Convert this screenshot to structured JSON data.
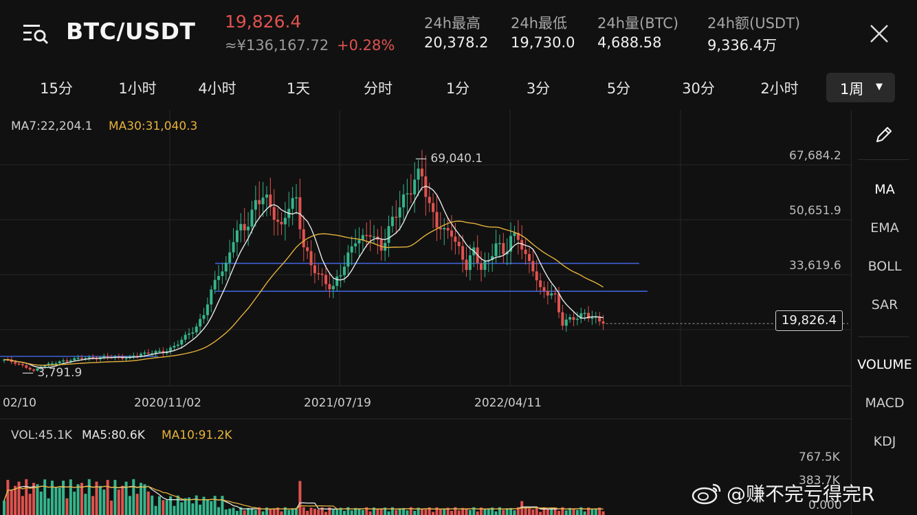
{
  "header": {
    "pair": "BTC/USDT",
    "last_price": "19,826.4",
    "cny_price": "≈¥136,167.72",
    "change": "+0.28%",
    "stats": [
      {
        "label": "24h最高",
        "value": "20,378.2"
      },
      {
        "label": "24h最低",
        "value": "19,730.0"
      },
      {
        "label": "24h量(BTC)",
        "value": "4,688.58"
      },
      {
        "label": "24h额(USDT)",
        "value": "9,336.4万"
      }
    ]
  },
  "tabs": [
    "15分",
    "1小时",
    "4小时",
    "1天",
    "分时",
    "1分",
    "3分",
    "5分",
    "30分",
    "2小时"
  ],
  "active_tab": {
    "label": "1周",
    "caret": "▼"
  },
  "side_panel": {
    "main_indicators": [
      "MA",
      "EMA",
      "BOLL",
      "SAR"
    ],
    "sub_indicators": [
      "VOLUME",
      "MACD",
      "KDJ"
    ]
  },
  "colors": {
    "up": "#35b58c",
    "down": "#e0534f",
    "ma7": "#e8e8e8",
    "ma30": "#e6b33c",
    "line": "#3f63d8"
  },
  "chart_data": {
    "type": "candlestick",
    "legend": {
      "ma7": "MA7:22,204.1",
      "ma30": "MA30:31,040.3"
    },
    "y_ticks": [
      "67,684.2",
      "50,651.9",
      "33,619.6"
    ],
    "x_ticks": [
      "02/10",
      "2020/11/02",
      "2021/07/19",
      "2022/04/11"
    ],
    "high_marker": "69,040.1",
    "low_marker": "3,791.9",
    "current_price": "19,826.4",
    "ylim": [
      3700,
      75000
    ],
    "horizontal_lines": [
      29850,
      38500
    ],
    "weekly_close_anchors": [
      [
        0,
        8500
      ],
      [
        3,
        7800
      ],
      [
        6,
        6200
      ],
      [
        8,
        5000
      ],
      [
        10,
        6800
      ],
      [
        14,
        7600
      ],
      [
        18,
        8800
      ],
      [
        22,
        9100
      ],
      [
        26,
        9300
      ],
      [
        30,
        9500
      ],
      [
        34,
        9200
      ],
      [
        37,
        10500
      ],
      [
        40,
        11000
      ],
      [
        43,
        10800
      ],
      [
        46,
        13000
      ],
      [
        49,
        15500
      ],
      [
        52,
        19000
      ],
      [
        54,
        23000
      ],
      [
        56,
        29000
      ],
      [
        58,
        36000
      ],
      [
        60,
        38000
      ],
      [
        62,
        46000
      ],
      [
        65,
        50000
      ],
      [
        68,
        57000
      ],
      [
        70,
        58500
      ],
      [
        73,
        55000
      ],
      [
        75,
        49000
      ],
      [
        77,
        56000
      ],
      [
        79,
        58000
      ],
      [
        81,
        45000
      ],
      [
        83,
        37000
      ],
      [
        85,
        35000
      ],
      [
        87,
        33000
      ],
      [
        89,
        31000
      ],
      [
        91,
        35000
      ],
      [
        93,
        41000
      ],
      [
        95,
        47000
      ],
      [
        97,
        45000
      ],
      [
        99,
        48000
      ],
      [
        102,
        44000
      ],
      [
        104,
        48000
      ],
      [
        107,
        57000
      ],
      [
        109,
        61000
      ],
      [
        111,
        63000
      ],
      [
        113,
        66000
      ],
      [
        115,
        57000
      ],
      [
        117,
        51000
      ],
      [
        119,
        47000
      ],
      [
        121,
        49000
      ],
      [
        123,
        43000
      ],
      [
        125,
        37000
      ],
      [
        127,
        42000
      ],
      [
        129,
        38000
      ],
      [
        131,
        39000
      ],
      [
        133,
        44000
      ],
      [
        135,
        42000
      ],
      [
        137,
        47000
      ],
      [
        139,
        46000
      ],
      [
        141,
        40000
      ],
      [
        143,
        38000
      ],
      [
        145,
        30000
      ],
      [
        147,
        29000
      ],
      [
        149,
        28500
      ],
      [
        151,
        20000
      ],
      [
        153,
        21000
      ],
      [
        155,
        21500
      ],
      [
        157,
        23500
      ],
      [
        159,
        21500
      ],
      [
        162,
        19826
      ]
    ],
    "volume": {
      "legend": {
        "vol": "VOL:45.1K",
        "ma5": "MA5:80.6K",
        "ma10": "MA10:91.2K"
      },
      "y_ticks": [
        "767.5K",
        "383.7K",
        "0.000"
      ],
      "max": 767500
    }
  },
  "watermark": "@赚不完亏得完R"
}
